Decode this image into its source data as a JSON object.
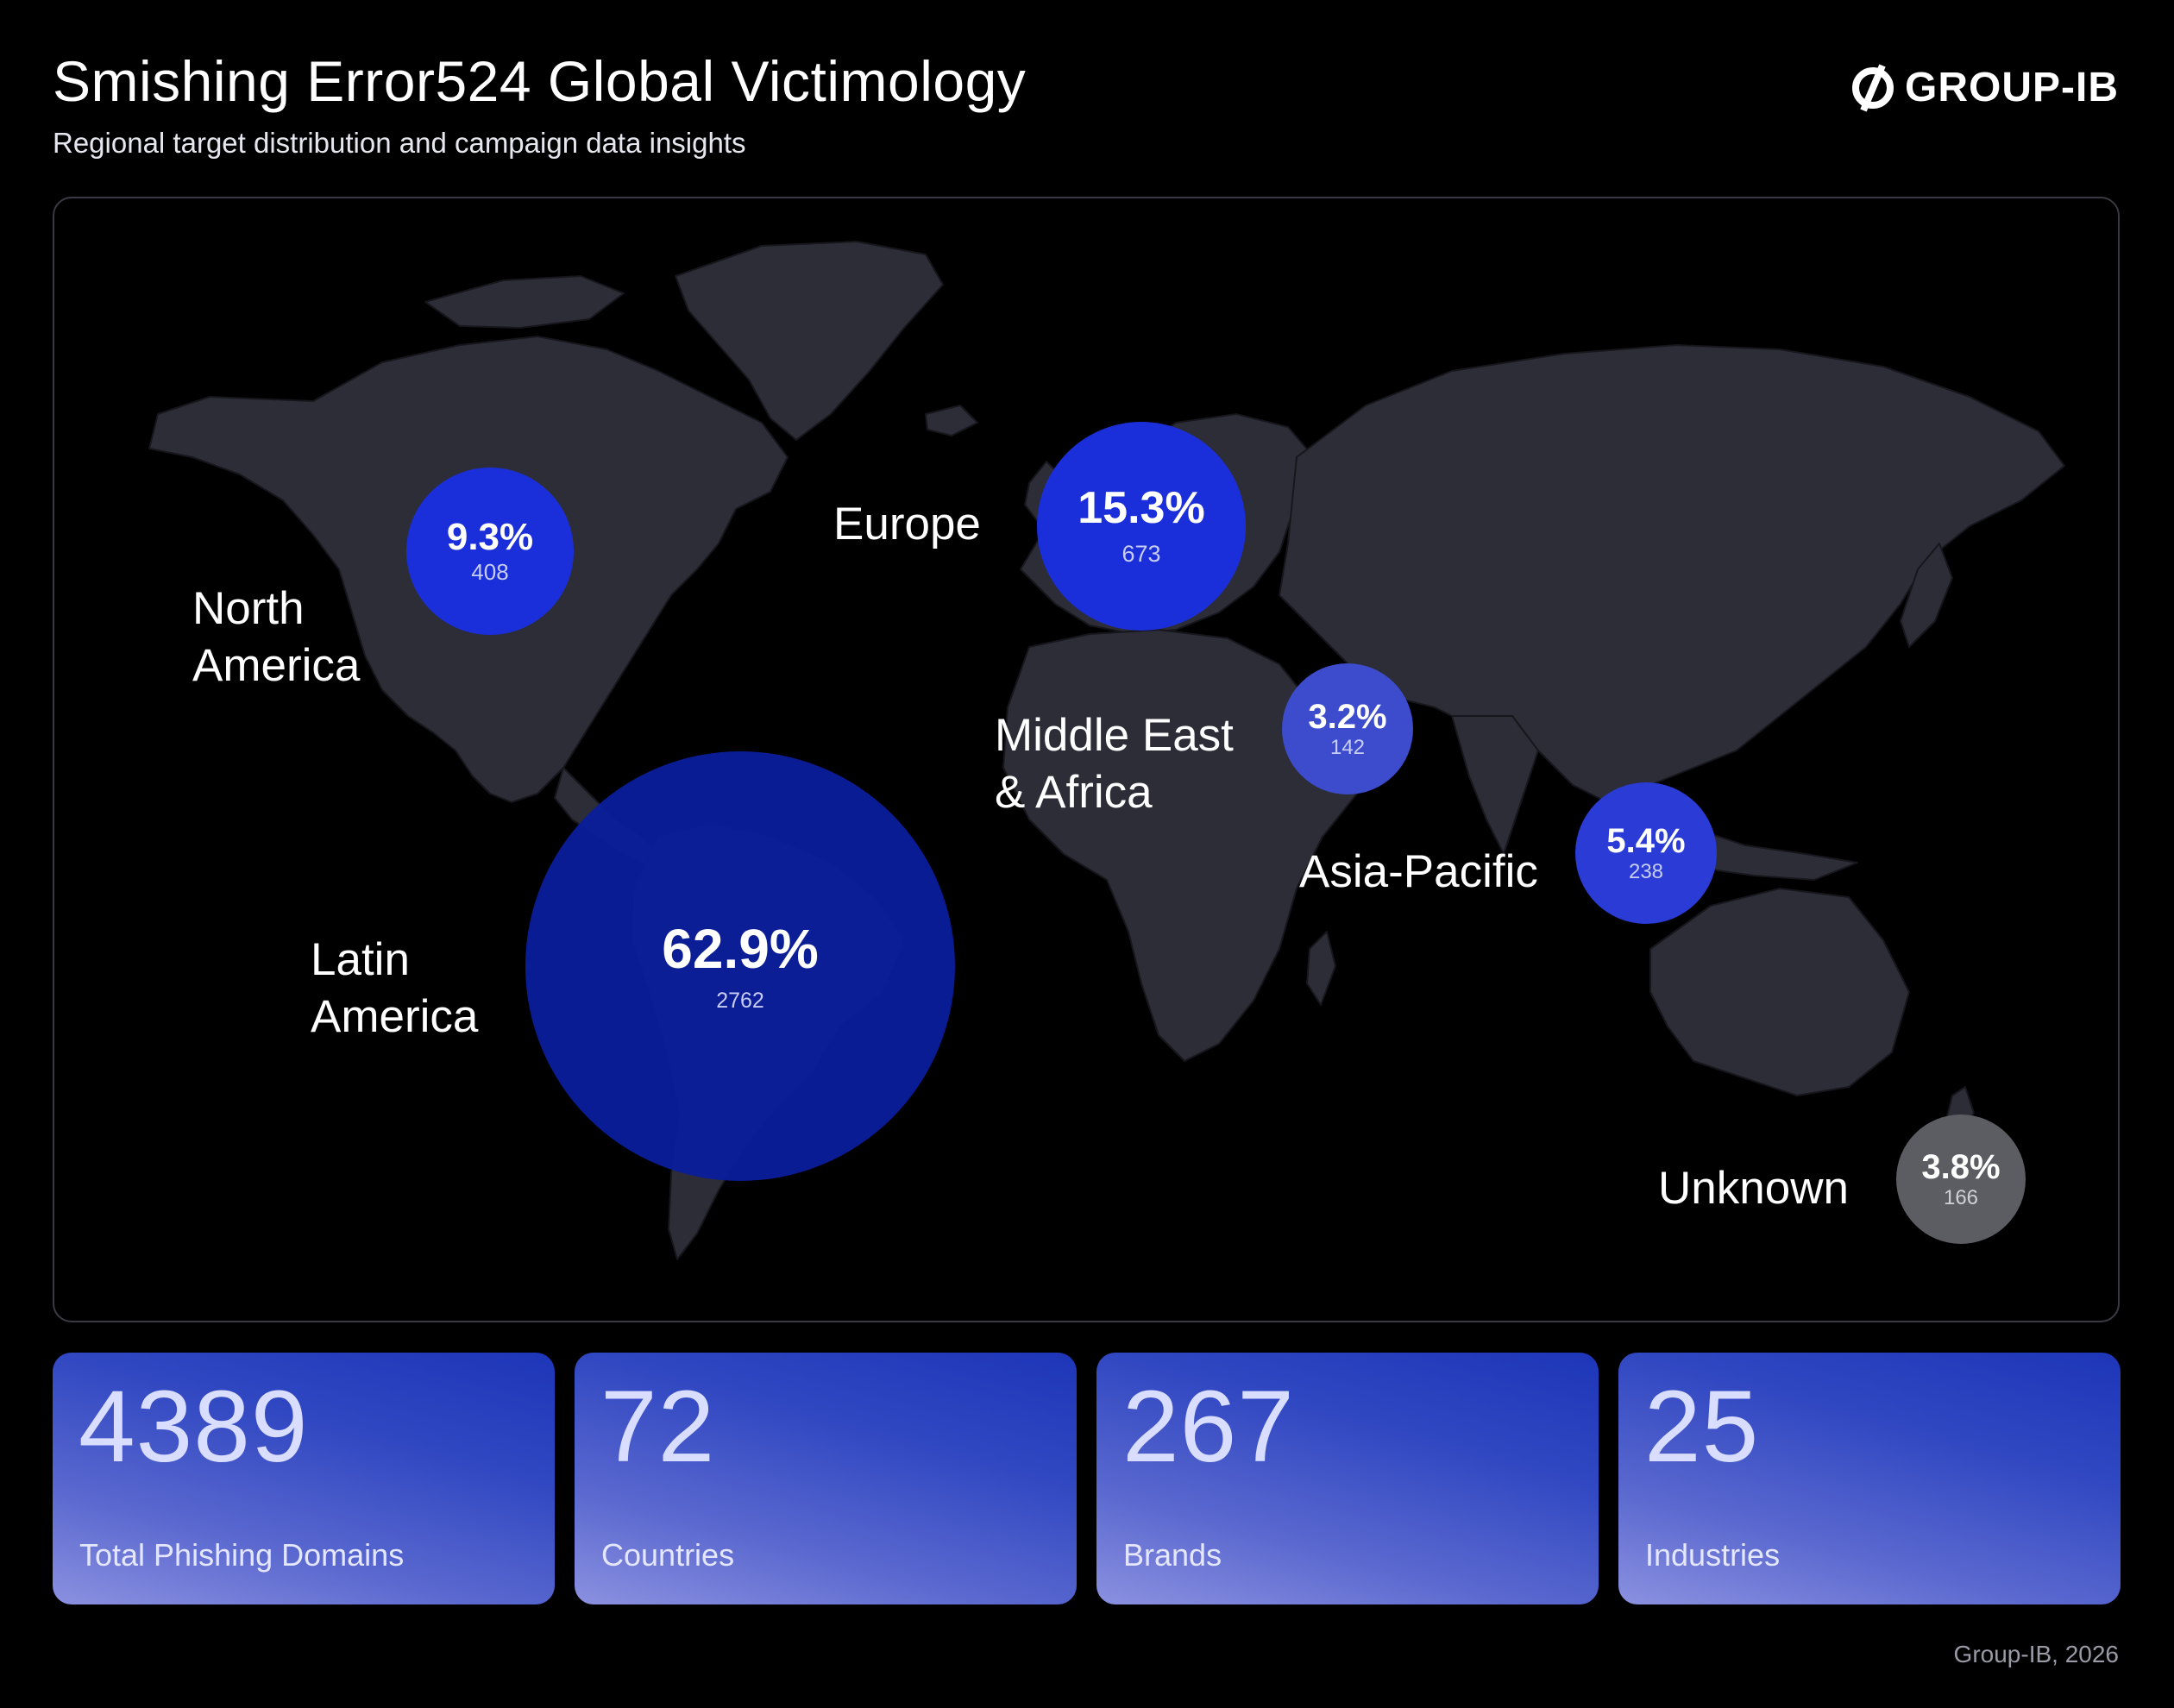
{
  "header": {
    "title": "Smishing Error524 Global Victimology",
    "subtitle": "Regional target distribution and campaign data insights",
    "brand": "GROUP-IB"
  },
  "regions": [
    {
      "name": "North America",
      "line1": "North",
      "line2": "America",
      "percent": "9.3%",
      "count": "408",
      "color": "#1a2fd9"
    },
    {
      "name": "Europe",
      "line1": "Europe",
      "line2": "",
      "percent": "15.3%",
      "count": "673",
      "color": "#1a2fd9"
    },
    {
      "name": "Middle East & Africa",
      "line1": "Middle East",
      "line2": "& Africa",
      "percent": "3.2%",
      "count": "142",
      "color": "#3c4ccc"
    },
    {
      "name": "Asia-Pacific",
      "line1": "Asia-Pacific",
      "line2": "",
      "percent": "5.4%",
      "count": "238",
      "color": "#2a3bd6"
    },
    {
      "name": "Latin America",
      "line1": "Latin",
      "line2": "America",
      "percent": "62.9%",
      "count": "2762",
      "color": "#0b1e9c"
    },
    {
      "name": "Unknown",
      "line1": "Unknown",
      "line2": "",
      "percent": "3.8%",
      "count": "166",
      "color": "#5c5c63"
    }
  ],
  "stats": [
    {
      "value": "4389",
      "label": "Total Phishing Domains"
    },
    {
      "value": "72",
      "label": "Countries"
    },
    {
      "value": "267",
      "label": "Brands"
    },
    {
      "value": "25",
      "label": "Industries"
    }
  ],
  "footer": "Group-IB, 2026",
  "colors": {
    "background": "#000000",
    "land": "#2d2d38",
    "bubble_blue": "#1a2fd9",
    "bubble_dark": "#0b1e9c",
    "bubble_unknown": "#5c5c63"
  }
}
